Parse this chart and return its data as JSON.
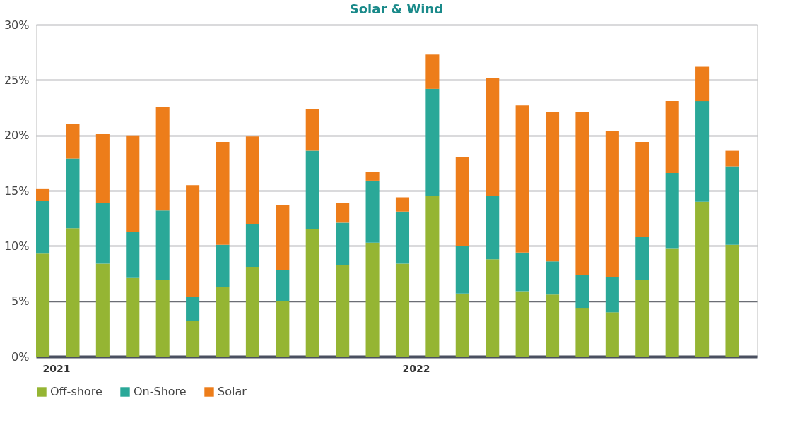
{
  "chart_data": {
    "type": "bar",
    "title": "Solar & Wind",
    "stacked": true,
    "categories": [
      "2021",
      null,
      null,
      null,
      null,
      null,
      null,
      null,
      null,
      null,
      null,
      null,
      "2022",
      null,
      null,
      null,
      null,
      null,
      null,
      null,
      null,
      null,
      null,
      null
    ],
    "series": [
      {
        "name": "Off-shore",
        "color": "#95b533",
        "values": [
          9.3,
          11.6,
          8.4,
          7.1,
          6.9,
          3.2,
          6.3,
          8.1,
          5.0,
          11.5,
          8.3,
          10.3,
          8.4,
          14.5,
          5.7,
          8.8,
          5.9,
          5.6,
          4.4,
          4.0,
          6.9,
          9.8,
          14.0,
          10.1
        ]
      },
      {
        "name": "On-Shore",
        "color": "#2aa898",
        "values": [
          4.8,
          6.3,
          5.5,
          4.2,
          6.3,
          2.2,
          3.8,
          3.9,
          2.8,
          7.1,
          3.8,
          5.6,
          4.7,
          9.7,
          4.3,
          5.7,
          3.5,
          3.0,
          3.0,
          3.2,
          3.9,
          6.8,
          9.1,
          7.1
        ]
      },
      {
        "name": "Solar",
        "color": "#ed7d1a",
        "values": [
          1.1,
          3.1,
          6.2,
          8.7,
          9.4,
          10.1,
          9.3,
          7.9,
          5.9,
          3.8,
          1.8,
          0.8,
          1.3,
          3.1,
          8.0,
          10.7,
          13.3,
          13.5,
          14.7,
          13.2,
          8.6,
          6.5,
          3.1,
          1.4
        ]
      }
    ],
    "ylim": [
      0,
      30
    ],
    "yticks": [
      {
        "value": 0,
        "label": "0%"
      },
      {
        "value": 5,
        "label": "5%"
      },
      {
        "value": 10,
        "label": "10%"
      },
      {
        "value": 15,
        "label": "15%"
      },
      {
        "value": 20,
        "label": "20%"
      },
      {
        "value": 25,
        "label": "25%"
      },
      {
        "value": 30,
        "label": "30%"
      }
    ],
    "grid": "y",
    "legend": "bottom"
  }
}
